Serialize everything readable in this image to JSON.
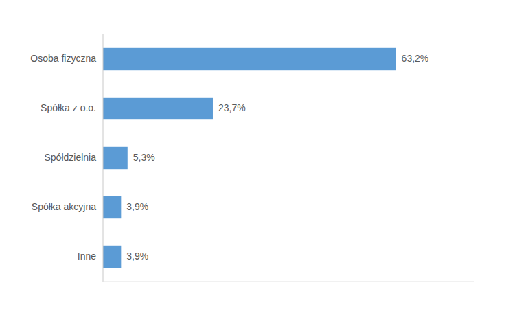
{
  "chart_data": {
    "type": "bar",
    "orientation": "horizontal",
    "categories": [
      "Inne",
      "Spółka akcyjna",
      "Spółdzielnia",
      "Spółka z o.o.",
      "Osoba fizyczna"
    ],
    "values": [
      3.9,
      3.9,
      5.3,
      23.7,
      63.2
    ],
    "value_labels": [
      "3,9%",
      "3,9%",
      "5,3%",
      "23,7%",
      "63,2%"
    ],
    "color": "#5b9bd5",
    "xlim": [
      0,
      80
    ],
    "grid": false,
    "data_labels": true,
    "tick_labels": "y"
  }
}
